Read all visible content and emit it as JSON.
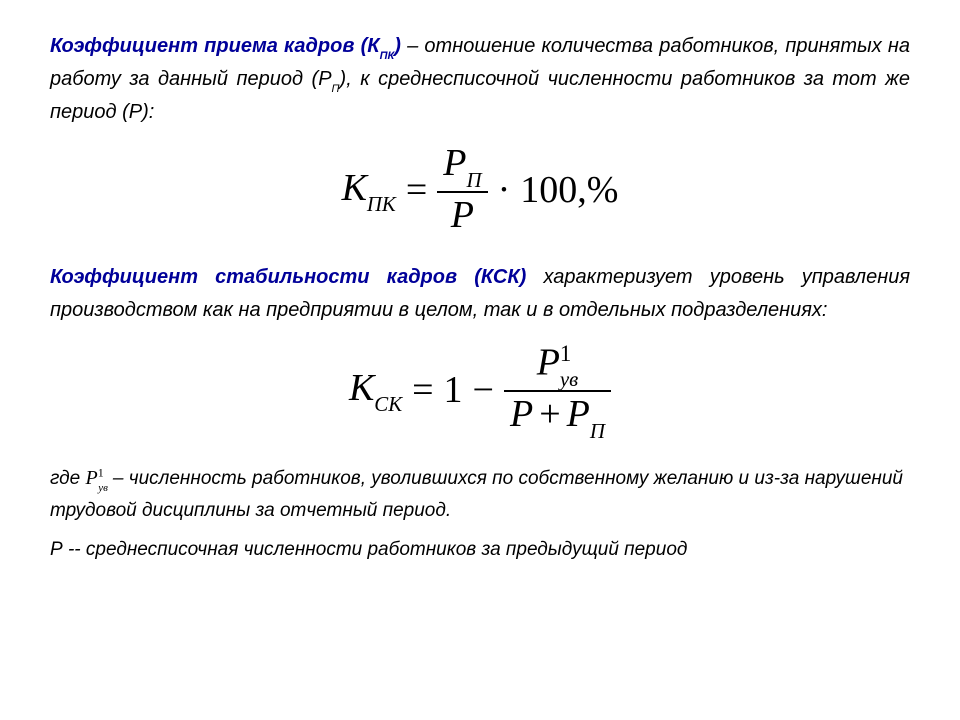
{
  "section1": {
    "term": "Коэффициент приема кадров",
    "symbol_open": "(К",
    "symbol_sub": "ПК",
    "symbol_close": ")",
    "body": " – отношение количества работников, принятых на работу за данный период (Р",
    "body_sub": "П",
    "body_end": "), к среднесписочной численности работников за тот же период (Р):"
  },
  "formula1": {
    "K": "К",
    "K_sub": "ПК",
    "eq": "=",
    "num_main": "Р",
    "num_sub": "П",
    "den": "Р",
    "dot": "·",
    "hundred": "100",
    "pct": ",%"
  },
  "section2": {
    "term": "Коэффициент стабильности кадров",
    "symbol": " (КСК) ",
    "body": "характеризует уровень управления производством как на предприятии в целом, так и в отдельных подразделениях:"
  },
  "formula2": {
    "K": "К",
    "K_sub": "СК",
    "eq": "=",
    "one": "1",
    "minus": "−",
    "num_main": "Р",
    "num_sup": "1",
    "num_sub": "ув",
    "den_left": "Р",
    "den_right_main": "Р",
    "den_right_sub": "П"
  },
  "where1": {
    "prefix": "где ",
    "var_main": "Р",
    "var_sup": "1",
    "var_sub": "ув",
    "body": " – численность работников, уволившихся по собственному желанию и из-за нарушений трудовой дисциплины за отчетный период."
  },
  "where2": {
    "var": "Р",
    "dash": " -- ",
    "body": "среднесписочная численности работников за предыдущий период"
  },
  "style": {
    "term_color": "#000099",
    "text_color": "#000000",
    "body_fontsize": 20,
    "formula_fontsize": 38,
    "background": "#ffffff"
  }
}
